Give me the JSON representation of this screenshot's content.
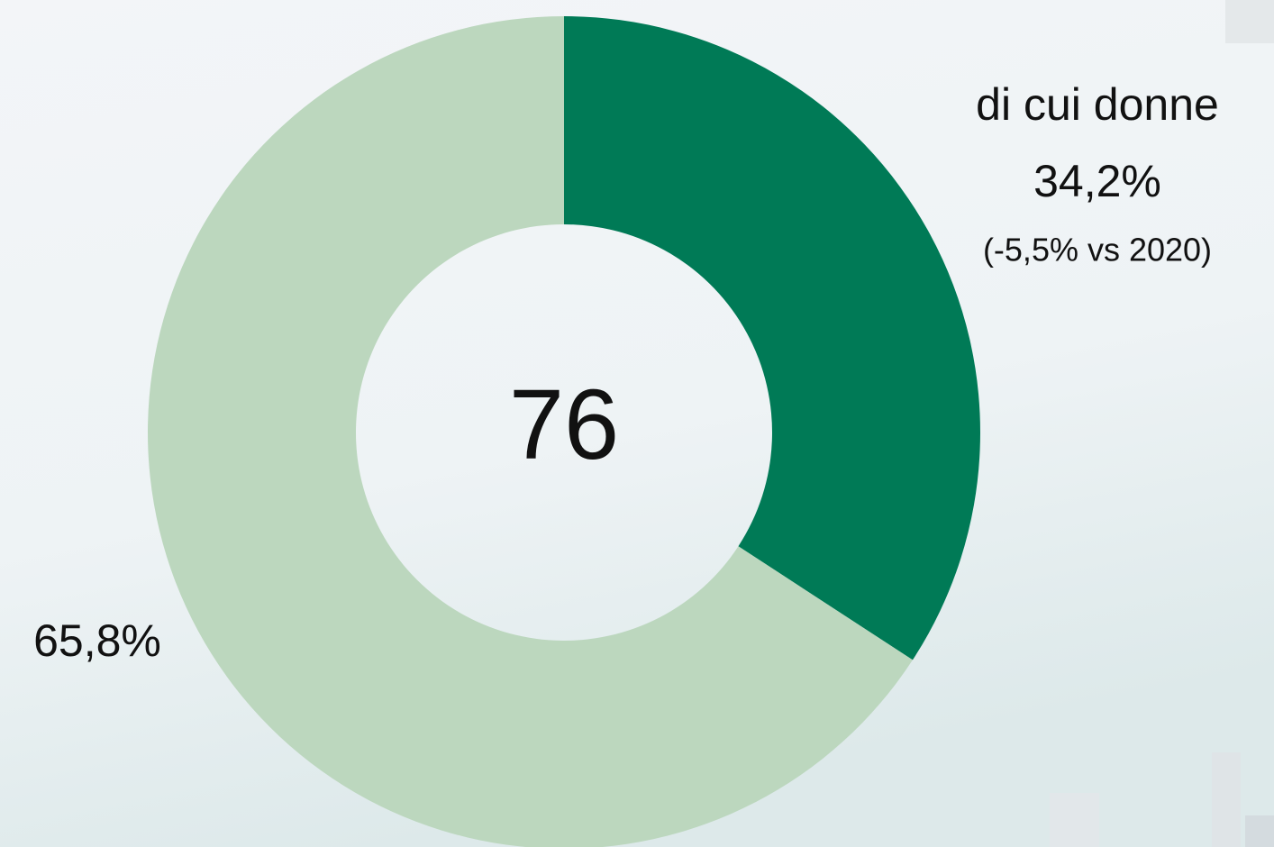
{
  "chart_data": {
    "type": "donut",
    "categories": [
      "di cui donne",
      null
    ],
    "values": [
      34.2,
      65.8
    ],
    "value_labels": [
      "34,2%",
      "65,8%"
    ],
    "colors": [
      "#007a56",
      "#bcd7be"
    ],
    "center_label": "76",
    "annotation": "(-5,5% vs 2020)"
  }
}
